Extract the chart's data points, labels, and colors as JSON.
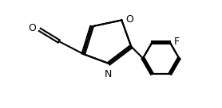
{
  "background_color": "#ffffff",
  "line_color": "#000000",
  "line_width": 1.5,
  "text_color": "#000000",
  "font_size": 9,
  "labels": {
    "O_aldehyde": "O",
    "N_oxazole": "N",
    "O_oxazole": "O",
    "F": "F"
  },
  "figsize": [
    2.78,
    1.36
  ],
  "dpi": 100
}
